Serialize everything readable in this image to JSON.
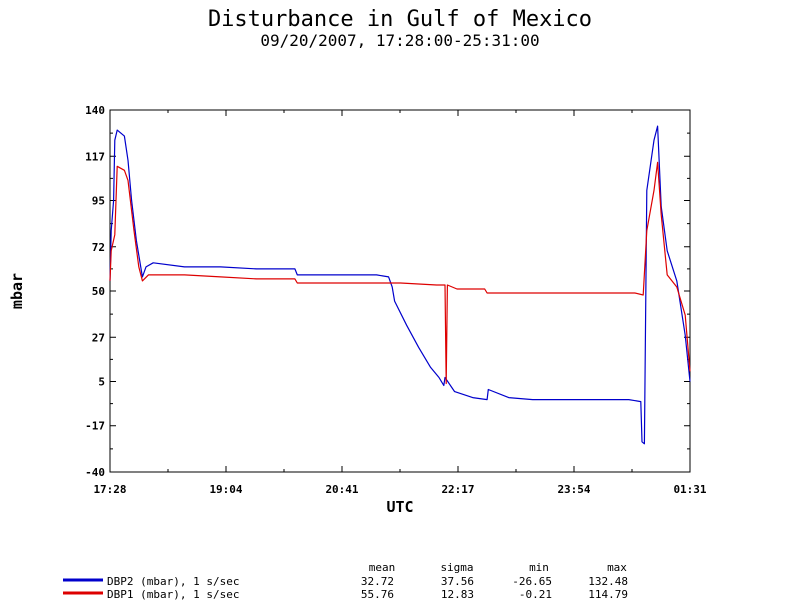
{
  "chart_data": {
    "type": "line",
    "title": "Disturbance in Gulf of Mexico",
    "subtitle": "09/20/2007, 17:28:00-25:31:00",
    "xlabel": "UTC",
    "ylabel": "mbar",
    "x_ticks": [
      "17:28",
      "19:04",
      "20:41",
      "22:17",
      "23:54",
      "01:31"
    ],
    "y_ticks": [
      140,
      117,
      95,
      72,
      50,
      27,
      5,
      -17,
      -40
    ],
    "ylim": [
      -40,
      140
    ],
    "x_range": [
      "17:28",
      "01:31"
    ],
    "grid": false,
    "legend_position": "bottom-left",
    "stats_headers": [
      "mean",
      "sigma",
      "min",
      "max"
    ],
    "series": [
      {
        "name": "DBP2 (mbar), 1 s/sec",
        "color": "#0000cc",
        "stats": [
          "32.72",
          "37.56",
          "-26.65",
          "132.48"
        ],
        "points": [
          [
            "17:28",
            55
          ],
          [
            "17:29",
            80
          ],
          [
            "17:31",
            95
          ],
          [
            "17:32",
            125
          ],
          [
            "17:34",
            130
          ],
          [
            "17:40",
            127
          ],
          [
            "17:43",
            115
          ],
          [
            "17:46",
            95
          ],
          [
            "17:50",
            75
          ],
          [
            "17:55",
            57
          ],
          [
            "17:58",
            62
          ],
          [
            "18:04",
            64
          ],
          [
            "18:30",
            62
          ],
          [
            "19:00",
            62
          ],
          [
            "19:30",
            61
          ],
          [
            "20:02",
            61
          ],
          [
            "20:04",
            58
          ],
          [
            "20:40",
            58
          ],
          [
            "21:10",
            58
          ],
          [
            "21:20",
            57
          ],
          [
            "21:23",
            52
          ],
          [
            "21:25",
            45
          ],
          [
            "21:35",
            33
          ],
          [
            "21:45",
            22
          ],
          [
            "21:55",
            12
          ],
          [
            "22:02",
            7
          ],
          [
            "22:06",
            3
          ],
          [
            "22:07",
            7
          ],
          [
            "22:15",
            0
          ],
          [
            "22:30",
            -3
          ],
          [
            "22:42",
            -4
          ],
          [
            "22:43",
            1
          ],
          [
            "23:00",
            -3
          ],
          [
            "23:20",
            -4
          ],
          [
            "23:54",
            -4
          ],
          [
            "24:40",
            -4
          ],
          [
            "24:50",
            -5
          ],
          [
            "24:51",
            -25
          ],
          [
            "24:53",
            -26
          ],
          [
            "24:55",
            100
          ],
          [
            "25:01",
            125
          ],
          [
            "25:04",
            132
          ],
          [
            "25:07",
            92
          ],
          [
            "25:12",
            70
          ],
          [
            "25:20",
            55
          ],
          [
            "25:27",
            28
          ],
          [
            "25:31",
            5
          ]
        ]
      },
      {
        "name": "DBP1 (mbar), 1 s/sec",
        "color": "#dd0000",
        "stats": [
          "55.76",
          "12.83",
          "-0.21",
          "114.79"
        ],
        "points": [
          [
            "17:28",
            55
          ],
          [
            "17:29",
            70
          ],
          [
            "17:32",
            78
          ],
          [
            "17:34",
            112
          ],
          [
            "17:40",
            110
          ],
          [
            "17:43",
            105
          ],
          [
            "17:48",
            80
          ],
          [
            "17:52",
            62
          ],
          [
            "17:55",
            55
          ],
          [
            "18:00",
            58
          ],
          [
            "18:30",
            58
          ],
          [
            "19:00",
            57
          ],
          [
            "19:30",
            56
          ],
          [
            "20:02",
            56
          ],
          [
            "20:04",
            54
          ],
          [
            "20:40",
            54
          ],
          [
            "21:00",
            54
          ],
          [
            "21:30",
            54
          ],
          [
            "22:00",
            53
          ],
          [
            "22:07",
            53
          ],
          [
            "22:08",
            4
          ],
          [
            "22:09",
            53
          ],
          [
            "22:17",
            51
          ],
          [
            "22:40",
            51
          ],
          [
            "22:42",
            49
          ],
          [
            "23:00",
            49
          ],
          [
            "23:54",
            49
          ],
          [
            "24:45",
            49
          ],
          [
            "24:52",
            48
          ],
          [
            "24:55",
            80
          ],
          [
            "25:01",
            100
          ],
          [
            "25:04",
            114
          ],
          [
            "25:07",
            88
          ],
          [
            "25:12",
            58
          ],
          [
            "25:20",
            52
          ],
          [
            "25:27",
            38
          ],
          [
            "25:31",
            10
          ]
        ]
      }
    ]
  }
}
